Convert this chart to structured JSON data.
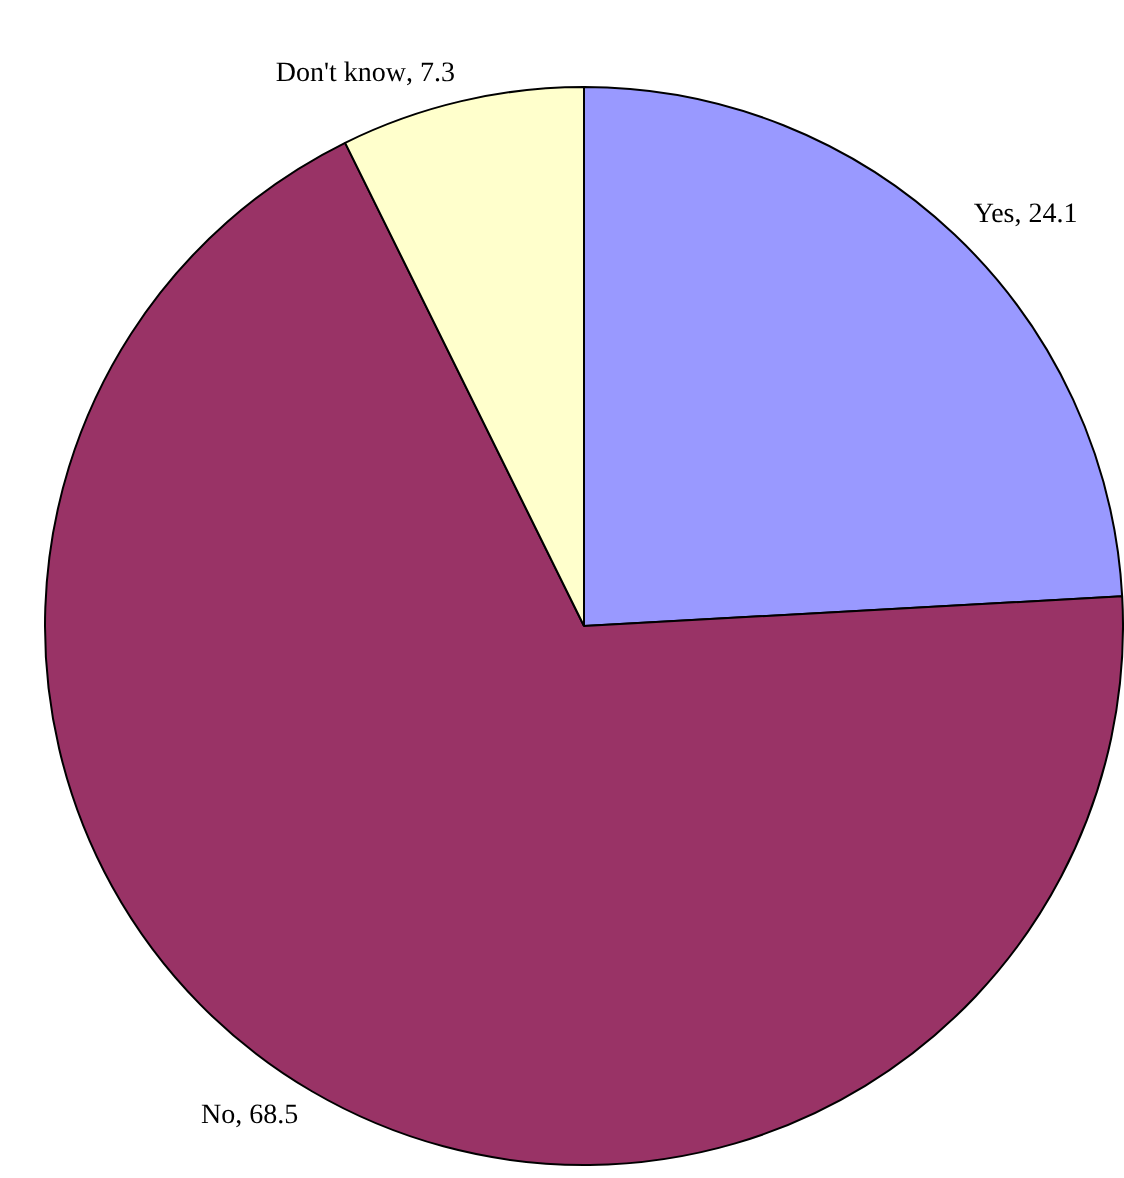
{
  "chart_data": {
    "type": "pie",
    "categories": [
      "Yes",
      "No",
      "Don't know"
    ],
    "values": [
      24.1,
      68.5,
      7.3
    ],
    "value_labels": [
      ", 24.1",
      ", 68.5",
      ", 7.3"
    ],
    "colors": [
      "#9999ff",
      "#993366",
      "#ffffcc"
    ],
    "legend": false
  }
}
